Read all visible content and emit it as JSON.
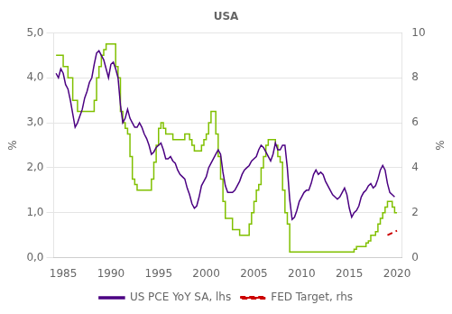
{
  "chart_data": {
    "type": "line",
    "title": "USA",
    "ylabel": "%",
    "y2label": "%",
    "xlim": [
      1984.0,
      2020.5
    ],
    "xticks": [
      1985,
      1990,
      1995,
      2000,
      2005,
      2010,
      2015,
      2020
    ],
    "ylim": [
      0.0,
      5.0
    ],
    "yticks": [
      {
        "value": 0.0,
        "label": "0,0"
      },
      {
        "value": 1.0,
        "label": "1,0"
      },
      {
        "value": 2.0,
        "label": "2,0"
      },
      {
        "value": 3.0,
        "label": "3,0"
      },
      {
        "value": 4.0,
        "label": "4,0"
      },
      {
        "value": 5.0,
        "label": "5,0"
      }
    ],
    "y2lim": [
      0.0,
      10.0
    ],
    "y2ticks": [
      0,
      2,
      4,
      6,
      8,
      10
    ],
    "grid": true,
    "legend": "bottom",
    "series": [
      {
        "name": "US PCE YoY SA, lhs",
        "color": "#4B0082",
        "type": "line",
        "line_style": "solid",
        "x": [
          1984.25,
          1984.5,
          1984.75,
          1985.0,
          1985.25,
          1985.5,
          1985.75,
          1986.0,
          1986.25,
          1986.5,
          1986.75,
          1987.0,
          1987.25,
          1987.5,
          1987.75,
          1988.0,
          1988.25,
          1988.5,
          1988.75,
          1989.0,
          1989.25,
          1989.5,
          1989.75,
          1990.0,
          1990.25,
          1990.5,
          1990.75,
          1991.0,
          1991.25,
          1991.5,
          1991.75,
          1992.0,
          1992.25,
          1992.5,
          1992.75,
          1993.0,
          1993.25,
          1993.5,
          1993.75,
          1994.0,
          1994.25,
          1994.5,
          1994.75,
          1995.0,
          1995.25,
          1995.5,
          1995.75,
          1996.0,
          1996.25,
          1996.5,
          1996.75,
          1997.0,
          1997.25,
          1997.5,
          1997.75,
          1998.0,
          1998.25,
          1998.5,
          1998.75,
          1999.0,
          1999.25,
          1999.5,
          1999.75,
          2000.0,
          2000.25,
          2000.5,
          2000.75,
          2001.0,
          2001.25,
          2001.5,
          2001.75,
          2002.0,
          2002.25,
          2002.5,
          2002.75,
          2003.0,
          2003.25,
          2003.5,
          2003.75,
          2004.0,
          2004.25,
          2004.5,
          2004.75,
          2005.0,
          2005.25,
          2005.5,
          2005.75,
          2006.0,
          2006.25,
          2006.5,
          2006.75,
          2007.0,
          2007.25,
          2007.5,
          2007.75,
          2008.0,
          2008.25,
          2008.5,
          2008.75,
          2009.0,
          2009.25,
          2009.5,
          2009.75,
          2010.0,
          2010.25,
          2010.5,
          2010.75,
          2011.0,
          2011.25,
          2011.5,
          2011.75,
          2012.0,
          2012.25,
          2012.5,
          2012.75,
          2013.0,
          2013.25,
          2013.5,
          2013.75,
          2014.0,
          2014.25,
          2014.5,
          2014.75,
          2015.0,
          2015.25,
          2015.5,
          2015.75,
          2016.0,
          2016.25,
          2016.5,
          2016.75,
          2017.0,
          2017.25,
          2017.5,
          2017.75,
          2018.0,
          2018.25,
          2018.5,
          2018.75,
          2019.0,
          2019.25,
          2019.5,
          2019.75
        ],
        "values": [
          4.1,
          4.0,
          4.2,
          4.1,
          3.85,
          3.75,
          3.5,
          3.2,
          2.9,
          3.0,
          3.15,
          3.3,
          3.55,
          3.7,
          3.9,
          4.0,
          4.3,
          4.55,
          4.6,
          4.5,
          4.4,
          4.2,
          4.0,
          4.3,
          4.35,
          4.2,
          4.0,
          3.4,
          3.0,
          3.1,
          3.3,
          3.1,
          3.0,
          2.9,
          2.9,
          3.0,
          2.9,
          2.75,
          2.65,
          2.5,
          2.3,
          2.35,
          2.45,
          2.5,
          2.55,
          2.4,
          2.2,
          2.2,
          2.25,
          2.15,
          2.1,
          1.95,
          1.85,
          1.8,
          1.75,
          1.55,
          1.4,
          1.2,
          1.1,
          1.15,
          1.35,
          1.6,
          1.7,
          1.8,
          2.0,
          2.1,
          2.2,
          2.3,
          2.4,
          2.3,
          1.9,
          1.6,
          1.45,
          1.45,
          1.45,
          1.5,
          1.6,
          1.7,
          1.85,
          1.95,
          2.0,
          2.05,
          2.15,
          2.2,
          2.25,
          2.4,
          2.5,
          2.45,
          2.35,
          2.25,
          2.15,
          2.3,
          2.55,
          2.4,
          2.4,
          2.5,
          2.5,
          2.0,
          1.3,
          0.85,
          0.9,
          1.05,
          1.25,
          1.35,
          1.45,
          1.5,
          1.5,
          1.65,
          1.85,
          1.95,
          1.85,
          1.9,
          1.85,
          1.7,
          1.6,
          1.5,
          1.4,
          1.35,
          1.3,
          1.35,
          1.45,
          1.55,
          1.4,
          1.1,
          0.9,
          1.0,
          1.05,
          1.15,
          1.35,
          1.45,
          1.5,
          1.6,
          1.65,
          1.55,
          1.6,
          1.75,
          1.95,
          2.05,
          1.95,
          1.65,
          1.45,
          1.4,
          1.35
        ]
      },
      {
        "color": "#80C000",
        "type": "step",
        "line_style": "solid",
        "axis": "y2",
        "x": [
          1984.25,
          1984.5,
          1985.0,
          1985.5,
          1986.0,
          1986.5,
          1987.0,
          1987.5,
          1988.0,
          1988.25,
          1988.5,
          1988.75,
          1989.0,
          1989.25,
          1989.5,
          1989.75,
          1990.0,
          1990.25,
          1990.5,
          1990.75,
          1991.0,
          1991.25,
          1991.5,
          1991.75,
          1992.0,
          1992.25,
          1992.5,
          1992.75,
          1993.0,
          1993.25,
          1993.5,
          1993.75,
          1994.0,
          1994.25,
          1994.5,
          1994.75,
          1995.0,
          1995.25,
          1995.5,
          1995.75,
          1996.0,
          1996.25,
          1996.5,
          1996.75,
          1997.0,
          1997.25,
          1997.5,
          1997.75,
          1998.0,
          1998.25,
          1998.5,
          1998.75,
          1999.0,
          1999.25,
          1999.5,
          1999.75,
          2000.0,
          2000.25,
          2000.5,
          2000.75,
          2001.0,
          2001.25,
          2001.5,
          2001.75,
          2002.0,
          2002.25,
          2002.5,
          2002.75,
          2003.0,
          2003.25,
          2003.5,
          2003.75,
          2004.0,
          2004.25,
          2004.5,
          2004.75,
          2005.0,
          2005.25,
          2005.5,
          2005.75,
          2006.0,
          2006.25,
          2006.5,
          2006.75,
          2007.0,
          2007.25,
          2007.5,
          2007.75,
          2008.0,
          2008.25,
          2008.5,
          2008.75,
          2009.0,
          2009.5,
          2010.0,
          2010.5,
          2011.0,
          2011.5,
          2012.0,
          2012.5,
          2013.0,
          2013.5,
          2014.0,
          2014.5,
          2015.0,
          2015.25,
          2015.5,
          2015.75,
          2016.0,
          2016.25,
          2016.5,
          2016.75,
          2017.0,
          2017.25,
          2017.5,
          2017.75,
          2018.0,
          2018.25,
          2018.5,
          2018.75,
          2019.0,
          2019.25,
          2019.5,
          2019.75,
          2020.0
        ],
        "values": [
          9.0,
          9.0,
          8.5,
          8.0,
          7.0,
          6.5,
          6.5,
          6.5,
          6.5,
          7.0,
          8.0,
          8.5,
          9.0,
          9.25,
          9.5,
          9.5,
          9.5,
          9.5,
          8.5,
          8.0,
          6.5,
          6.0,
          5.75,
          5.5,
          4.5,
          3.5,
          3.25,
          3.0,
          3.0,
          3.0,
          3.0,
          3.0,
          3.0,
          3.5,
          4.25,
          5.0,
          5.75,
          6.0,
          5.75,
          5.5,
          5.5,
          5.5,
          5.25,
          5.25,
          5.25,
          5.25,
          5.25,
          5.5,
          5.5,
          5.25,
          5.0,
          4.75,
          4.75,
          4.75,
          5.0,
          5.25,
          5.5,
          6.0,
          6.5,
          6.5,
          5.5,
          4.5,
          3.5,
          2.5,
          1.75,
          1.75,
          1.75,
          1.25,
          1.25,
          1.25,
          1.0,
          1.0,
          1.0,
          1.0,
          1.5,
          2.0,
          2.5,
          3.0,
          3.25,
          4.0,
          4.5,
          5.0,
          5.25,
          5.25,
          5.25,
          5.0,
          4.5,
          4.25,
          3.0,
          2.0,
          1.5,
          0.25,
          0.25,
          0.25,
          0.25,
          0.25,
          0.25,
          0.25,
          0.25,
          0.25,
          0.25,
          0.25,
          0.25,
          0.25,
          0.25,
          0.25,
          0.375,
          0.5,
          0.5,
          0.5,
          0.5,
          0.66,
          0.75,
          1.0,
          1.0,
          1.16,
          1.5,
          1.75,
          2.0,
          2.25,
          2.5,
          2.5,
          2.25,
          2.0,
          2.0
        ]
      },
      {
        "name": "FED Target, rhs",
        "color": "#CC0000",
        "type": "line",
        "line_style": "dashed",
        "axis": "y2",
        "x": [
          2019.0,
          2019.25,
          2019.5,
          2019.75,
          2020.0
        ],
        "values": [
          1.0,
          1.05,
          1.1,
          1.15,
          1.2
        ]
      }
    ]
  }
}
